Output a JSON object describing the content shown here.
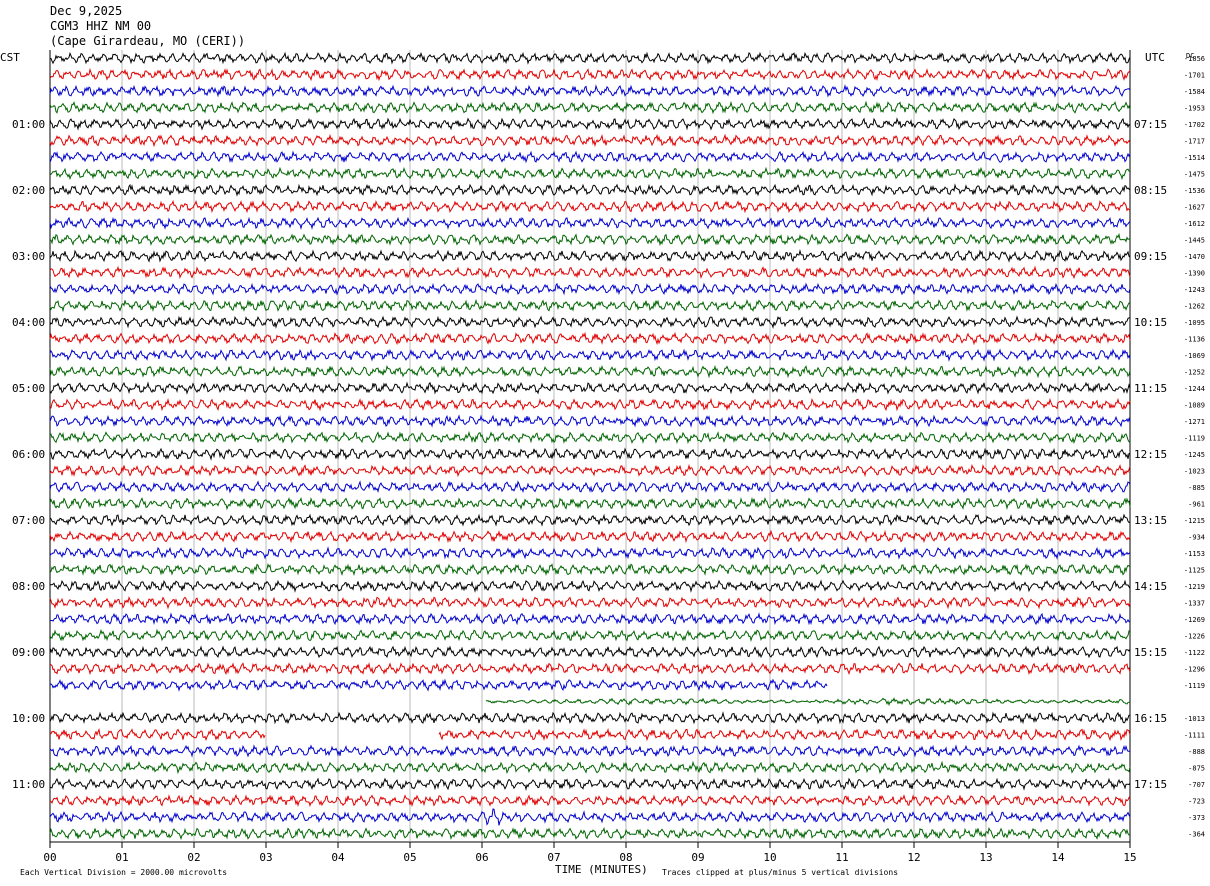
{
  "header": {
    "date": "Dec 9,2025",
    "station": "CGM3 HHZ NM 00",
    "location": "(Cape Girardeau, MO (CERI))"
  },
  "labels": {
    "left_tz": "CST",
    "right_tz": "UTC",
    "dc": "DC",
    "xlabel": "TIME (MINUTES)",
    "scale_note": "Each Vertical Division = 2000.00 microvolts",
    "clip_note": "Traces clipped at plus/minus 5 vertical divisions"
  },
  "chart_data": {
    "type": "line",
    "title": "CGM3 HHZ NM 00",
    "xlabel": "TIME (MINUTES)",
    "xlim": [
      0,
      15
    ],
    "x_ticks": [
      "00",
      "01",
      "02",
      "03",
      "04",
      "05",
      "06",
      "07",
      "08",
      "09",
      "10",
      "11",
      "12",
      "13",
      "14",
      "15"
    ],
    "left_hour_labels": [
      "01:00",
      "02:00",
      "03:00",
      "04:00",
      "05:00",
      "06:00",
      "07:00",
      "08:00",
      "09:00",
      "10:00",
      "11:00"
    ],
    "right_hour_labels": [
      "07:15",
      "08:15",
      "09:15",
      "10:15",
      "11:15",
      "12:15",
      "13:15",
      "14:15",
      "15:15",
      "16:15",
      "17:15"
    ],
    "trace_colors": [
      "#000000",
      "#e00000",
      "#0000cc",
      "#006400"
    ],
    "dc_offsets": [
      "-1856",
      "-1701",
      "-1584",
      "-1953",
      "-1702",
      "-1717",
      "-1514",
      "-1475",
      "-1536",
      "-1627",
      "-1612",
      "-1445",
      "-1470",
      "-1390",
      "-1243",
      "-1262",
      "-1095",
      "-1136",
      "-1069",
      "-1252",
      "-1244",
      "-1089",
      "-1271",
      "-1119",
      "-1245",
      "-1023",
      "-885",
      "-961",
      "-1215",
      "-934",
      "-1153",
      "-1125",
      "-1219",
      "-1337",
      "-1269",
      "-1226",
      "-1122",
      "-1296",
      "-1119",
      "",
      "-1013",
      "-1111",
      "-888",
      "-875",
      "-707",
      "-723",
      "-373",
      "-364"
    ],
    "traces": 48,
    "minutes_per_trace": 15
  }
}
